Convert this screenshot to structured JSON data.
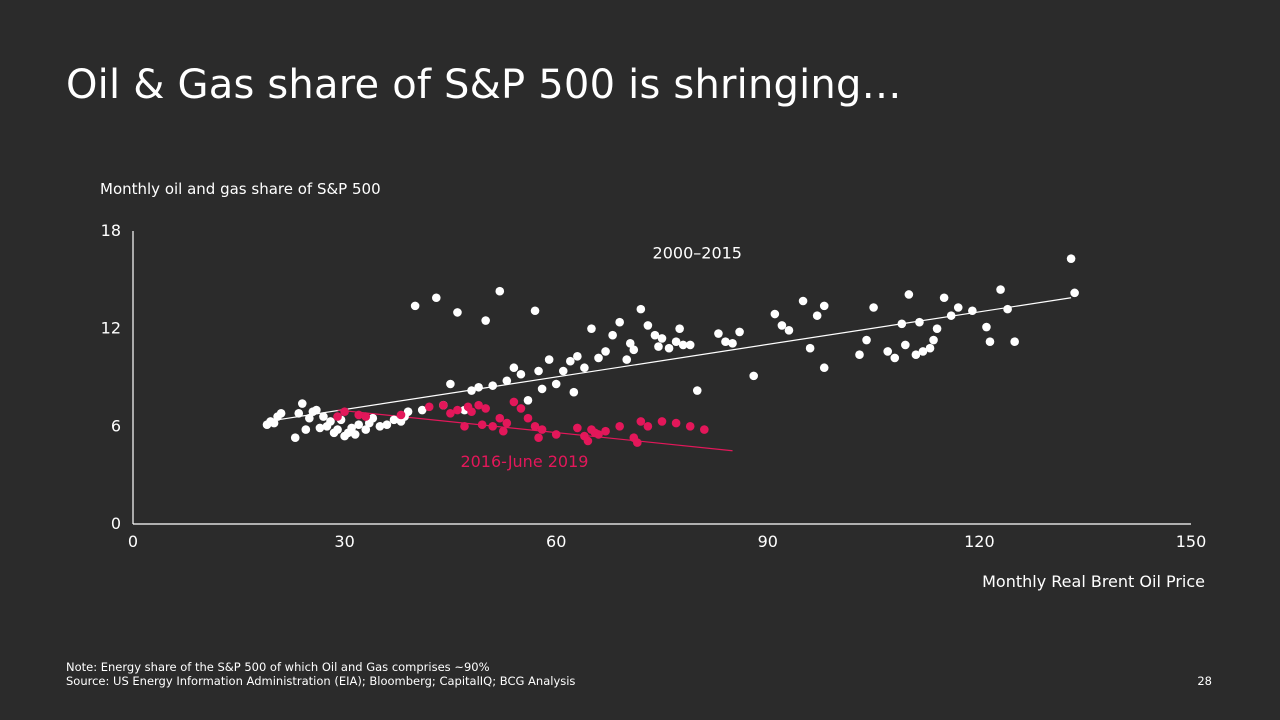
{
  "slide": {
    "title": "Oil & Gas share of S&P 500 is shringing…",
    "page_number": "28",
    "note": "Note: Energy share of the S&P 500 of which Oil and Gas comprises ~90%",
    "source": "Source: US Energy Information Administration (EIA); Bloomberg; CapitalIQ; BCG Analysis"
  },
  "colors": {
    "background": "#2b2b2b",
    "series_2000_2015": "#ffffff",
    "series_2016_2019": "#e3175a"
  },
  "chart_data": {
    "type": "scatter",
    "ylabel": "Monthly oil and gas share of S&P 500",
    "xlabel": "Monthly Real Brent Oil Price",
    "xlim": [
      0,
      150
    ],
    "ylim": [
      0,
      18
    ],
    "x_ticks": [
      0,
      30,
      60,
      90,
      120,
      150
    ],
    "y_ticks": [
      0,
      6,
      12,
      18
    ],
    "grid": false,
    "series": [
      {
        "name": "2000–2015",
        "color": "#ffffff",
        "trendline": [
          [
            19,
            6.3
          ],
          [
            133,
            13.9
          ]
        ],
        "points": [
          [
            19,
            6.1
          ],
          [
            19.5,
            6.3
          ],
          [
            20,
            6.2
          ],
          [
            20.5,
            6.6
          ],
          [
            21,
            6.8
          ],
          [
            23,
            5.3
          ],
          [
            23.5,
            6.8
          ],
          [
            24,
            7.4
          ],
          [
            24.5,
            5.8
          ],
          [
            25,
            6.5
          ],
          [
            25.5,
            6.9
          ],
          [
            26,
            7.0
          ],
          [
            26.5,
            5.9
          ],
          [
            27,
            6.6
          ],
          [
            27.5,
            6.0
          ],
          [
            28,
            6.3
          ],
          [
            28.5,
            5.6
          ],
          [
            29,
            5.8
          ],
          [
            29.5,
            6.4
          ],
          [
            30,
            5.4
          ],
          [
            30.5,
            5.6
          ],
          [
            31,
            5.9
          ],
          [
            31.5,
            5.5
          ],
          [
            32,
            6.1
          ],
          [
            33,
            5.8
          ],
          [
            33.5,
            6.2
          ],
          [
            34,
            6.5
          ],
          [
            35,
            6.0
          ],
          [
            36,
            6.1
          ],
          [
            37,
            6.4
          ],
          [
            38,
            6.3
          ],
          [
            38.5,
            6.6
          ],
          [
            39,
            6.9
          ],
          [
            40,
            13.4
          ],
          [
            41,
            7.0
          ],
          [
            43,
            13.9
          ],
          [
            44,
            7.3
          ],
          [
            45,
            8.6
          ],
          [
            46,
            13.0
          ],
          [
            47,
            7.0
          ],
          [
            48,
            8.2
          ],
          [
            49,
            8.4
          ],
          [
            50,
            12.5
          ],
          [
            51,
            8.5
          ],
          [
            52,
            14.3
          ],
          [
            53,
            8.8
          ],
          [
            54,
            9.6
          ],
          [
            55,
            9.2
          ],
          [
            56,
            7.6
          ],
          [
            57,
            13.1
          ],
          [
            57.5,
            9.4
          ],
          [
            58,
            8.3
          ],
          [
            59,
            10.1
          ],
          [
            60,
            8.6
          ],
          [
            61,
            9.4
          ],
          [
            62,
            10.0
          ],
          [
            62.5,
            8.1
          ],
          [
            63,
            10.3
          ],
          [
            64,
            9.6
          ],
          [
            65,
            12.0
          ],
          [
            66,
            10.2
          ],
          [
            67,
            10.6
          ],
          [
            68,
            11.6
          ],
          [
            69,
            12.4
          ],
          [
            70,
            10.1
          ],
          [
            70.5,
            11.1
          ],
          [
            71,
            10.7
          ],
          [
            72,
            13.2
          ],
          [
            73,
            12.2
          ],
          [
            74,
            11.6
          ],
          [
            74.5,
            10.9
          ],
          [
            75,
            11.4
          ],
          [
            76,
            10.8
          ],
          [
            77,
            11.2
          ],
          [
            77.5,
            12.0
          ],
          [
            78,
            11.0
          ],
          [
            79,
            11.0
          ],
          [
            80,
            8.2
          ],
          [
            83,
            11.7
          ],
          [
            84,
            11.2
          ],
          [
            85,
            11.1
          ],
          [
            86,
            11.8
          ],
          [
            88,
            9.1
          ],
          [
            91,
            12.9
          ],
          [
            92,
            12.2
          ],
          [
            93,
            11.9
          ],
          [
            95,
            13.7
          ],
          [
            96,
            10.8
          ],
          [
            97,
            12.8
          ],
          [
            98,
            13.4
          ],
          [
            98,
            9.6
          ],
          [
            103,
            10.4
          ],
          [
            104,
            11.3
          ],
          [
            105,
            13.3
          ],
          [
            107,
            10.6
          ],
          [
            108,
            10.2
          ],
          [
            109,
            12.3
          ],
          [
            109.5,
            11.0
          ],
          [
            110,
            14.1
          ],
          [
            111,
            10.4
          ],
          [
            111.5,
            12.4
          ],
          [
            112,
            10.6
          ],
          [
            113,
            10.8
          ],
          [
            113.5,
            11.3
          ],
          [
            114,
            12.0
          ],
          [
            115,
            13.9
          ],
          [
            116,
            12.8
          ],
          [
            117,
            13.3
          ],
          [
            119,
            13.1
          ],
          [
            121,
            12.1
          ],
          [
            121.5,
            11.2
          ],
          [
            123,
            14.4
          ],
          [
            124,
            13.2
          ],
          [
            125,
            11.2
          ],
          [
            133,
            16.3
          ],
          [
            133.5,
            14.2
          ]
        ]
      },
      {
        "name": "2016-June 2019",
        "color": "#e3175a",
        "trendline": [
          [
            29,
            7.0
          ],
          [
            85,
            4.5
          ]
        ],
        "points": [
          [
            29,
            6.6
          ],
          [
            30,
            6.9
          ],
          [
            32,
            6.7
          ],
          [
            33,
            6.6
          ],
          [
            38,
            6.7
          ],
          [
            42,
            7.2
          ],
          [
            44,
            7.3
          ],
          [
            45,
            6.8
          ],
          [
            46,
            7.0
          ],
          [
            47,
            6.0
          ],
          [
            47.5,
            7.2
          ],
          [
            48,
            6.9
          ],
          [
            49,
            7.3
          ],
          [
            49.5,
            6.1
          ],
          [
            50,
            7.1
          ],
          [
            51,
            6.0
          ],
          [
            52,
            6.5
          ],
          [
            52.5,
            5.7
          ],
          [
            53,
            6.2
          ],
          [
            54,
            7.5
          ],
          [
            55,
            7.1
          ],
          [
            56,
            6.5
          ],
          [
            57,
            6.0
          ],
          [
            57.5,
            5.3
          ],
          [
            58,
            5.8
          ],
          [
            60,
            5.5
          ],
          [
            63,
            5.9
          ],
          [
            64,
            5.4
          ],
          [
            64.5,
            5.1
          ],
          [
            65,
            5.8
          ],
          [
            65.5,
            5.6
          ],
          [
            66,
            5.5
          ],
          [
            67,
            5.7
          ],
          [
            69,
            6.0
          ],
          [
            71,
            5.3
          ],
          [
            71.5,
            5.0
          ],
          [
            72,
            6.3
          ],
          [
            73,
            6.0
          ],
          [
            75,
            6.3
          ],
          [
            77,
            6.2
          ],
          [
            79,
            6.0
          ],
          [
            81,
            5.8
          ]
        ]
      }
    ],
    "annotations": [
      {
        "text": "2000–2015",
        "color": "#ffffff",
        "at": [
          80,
          16.3
        ]
      },
      {
        "text": "2016-June 2019",
        "color": "#e3175a",
        "at": [
          55.5,
          3.5
        ]
      }
    ]
  }
}
